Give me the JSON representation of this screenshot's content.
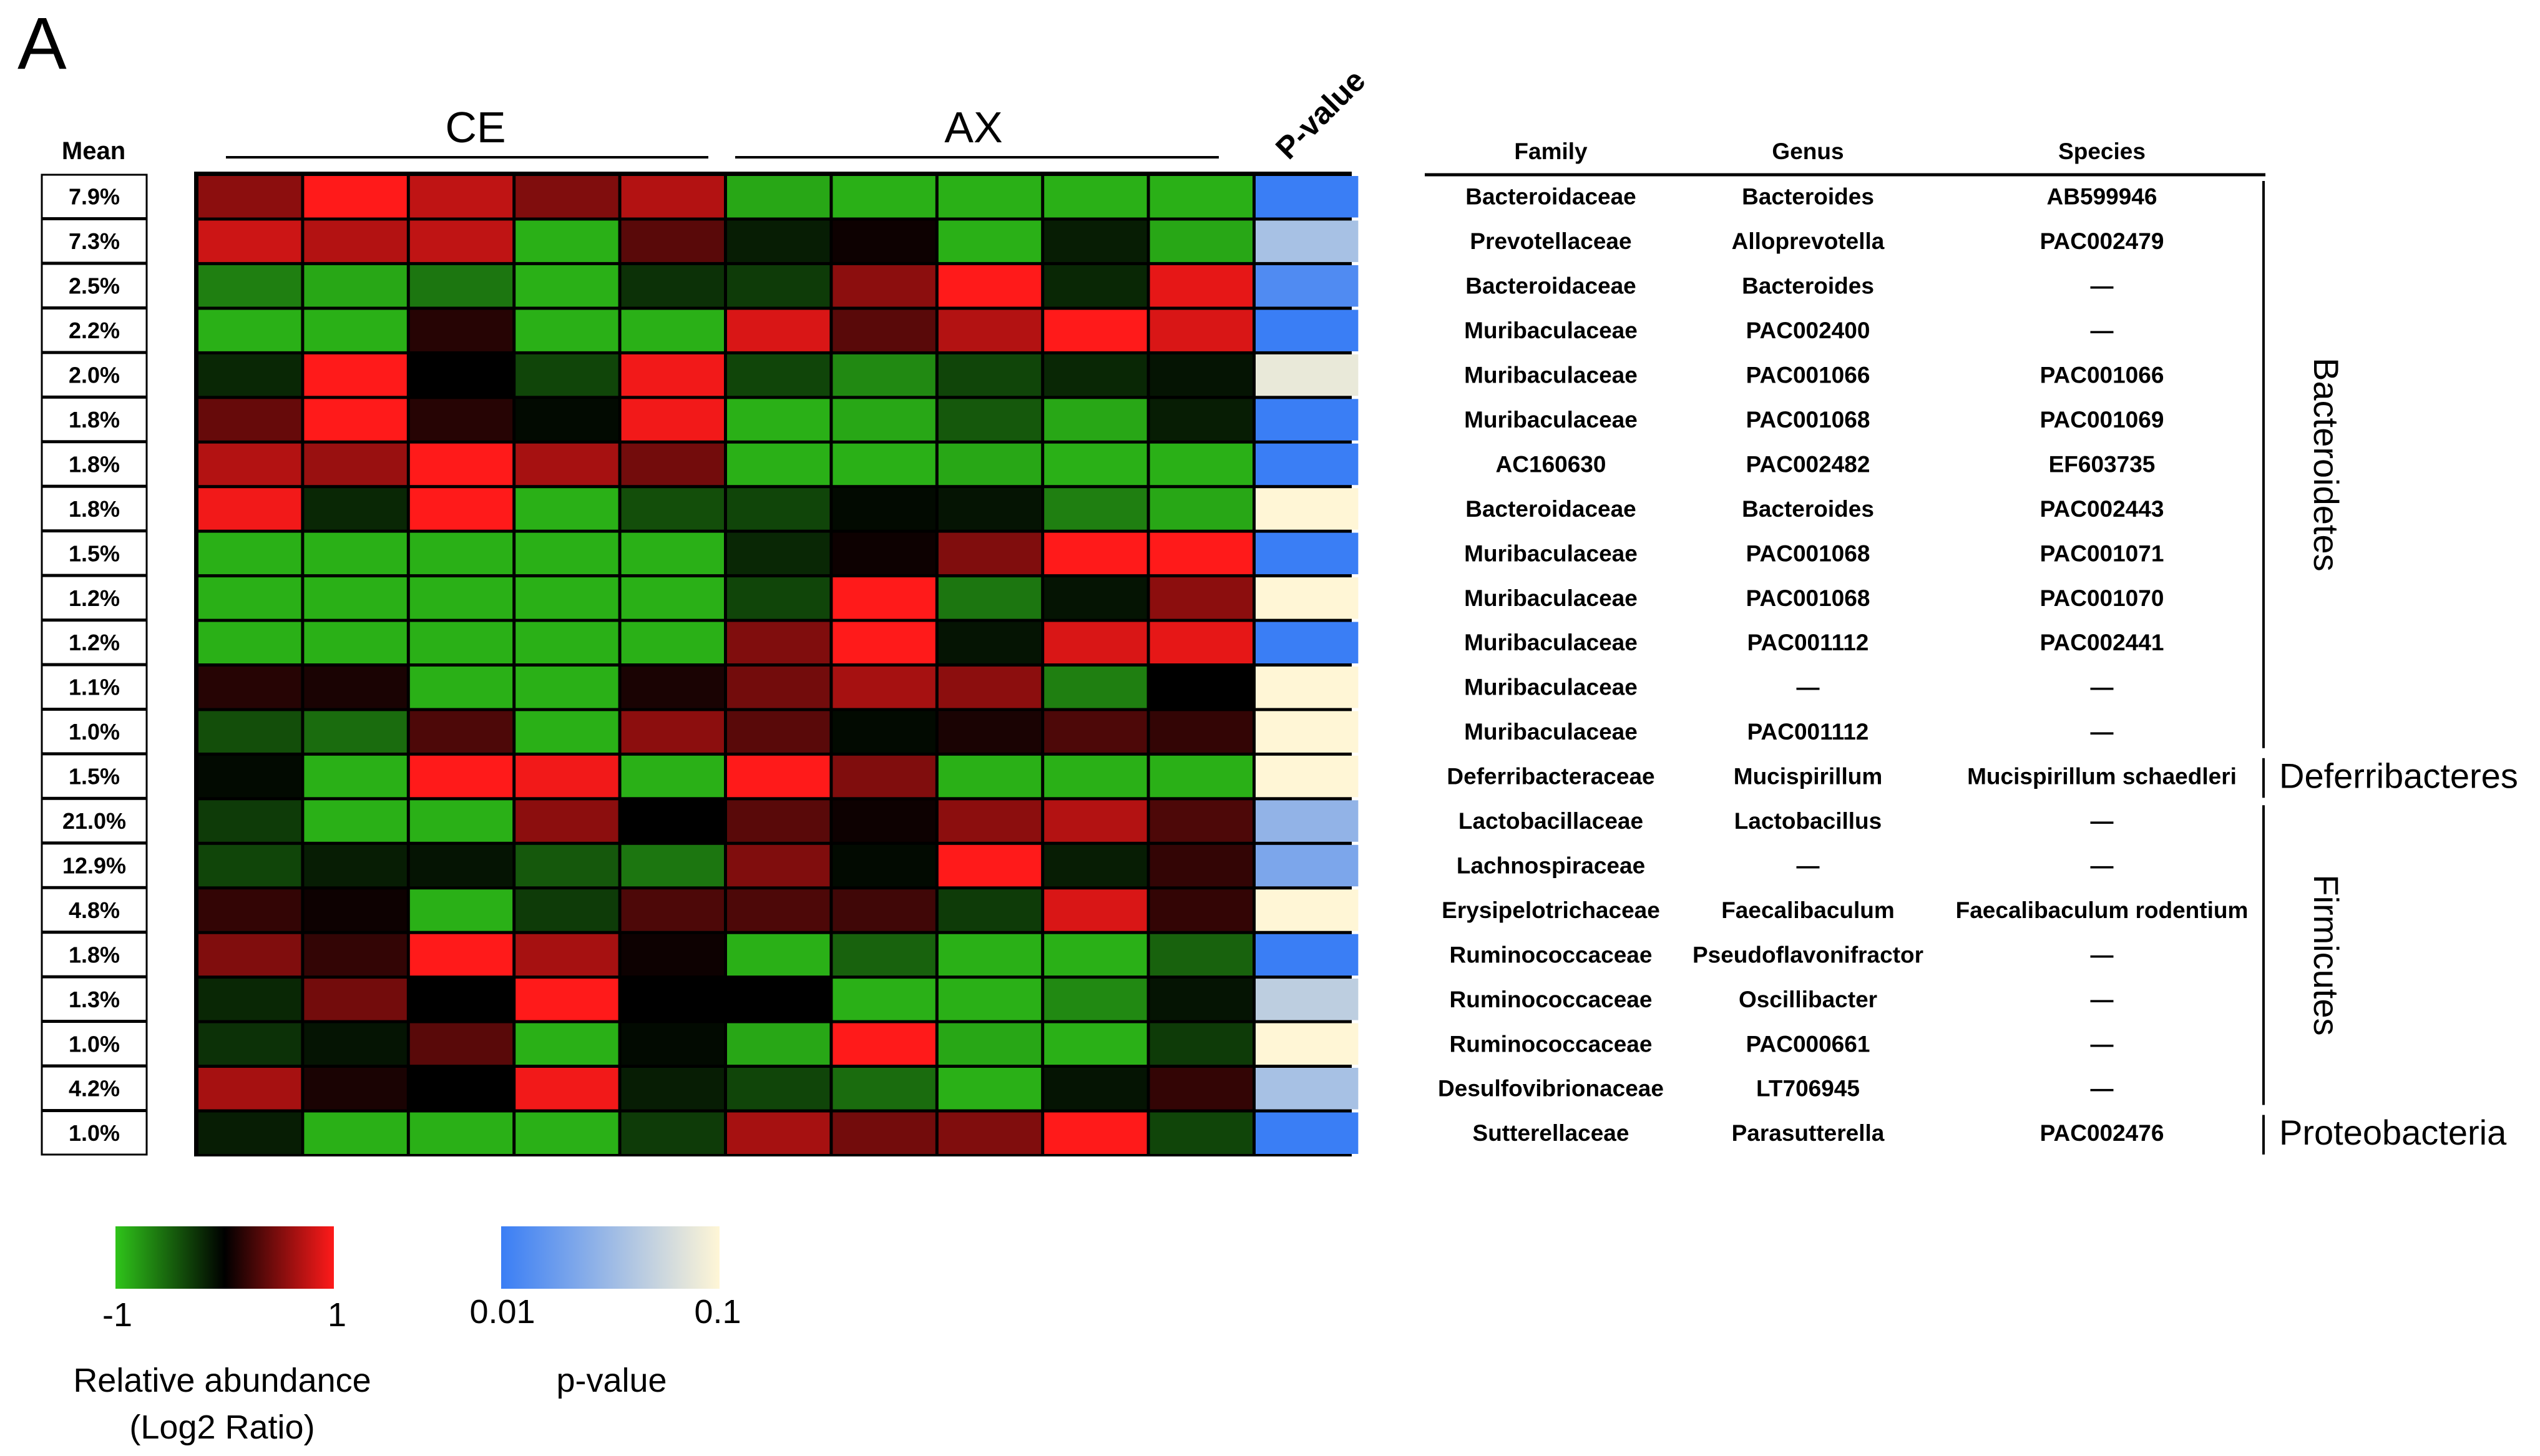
{
  "panel_label": "A",
  "colors": {
    "abundance_low": "#2fc41a",
    "abundance_mid": "#000000",
    "abundance_high": "#ff1a1a",
    "pvalue_low": "#3a7ef5",
    "pvalue_high": "#fff6d6"
  },
  "chart_data": {
    "type": "heatmap",
    "groups": [
      {
        "label": "CE",
        "columns": 5
      },
      {
        "label": "AX",
        "columns": 5
      }
    ],
    "pvalue_header": "P-value",
    "mean_header": "Mean",
    "value_range": [
      -1,
      1
    ],
    "rows": [
      {
        "mean": "7.9%",
        "values": [
          0.55,
          1.0,
          0.75,
          0.5,
          0.7,
          -0.85,
          -0.9,
          -0.9,
          -0.9,
          -0.9
        ],
        "p": 0.01
      },
      {
        "mean": "7.3%",
        "values": [
          0.8,
          0.7,
          0.75,
          -0.9,
          0.35,
          -0.15,
          0.05,
          -0.9,
          -0.15,
          -0.85
        ],
        "p": 0.06
      },
      {
        "mean": "2.5%",
        "values": [
          -0.65,
          -0.85,
          -0.6,
          -0.9,
          -0.25,
          -0.3,
          0.55,
          1.0,
          -0.2,
          0.9
        ],
        "p": 0.02
      },
      {
        "mean": "2.2%",
        "values": [
          -0.9,
          -0.9,
          0.15,
          -0.9,
          -0.9,
          0.85,
          0.35,
          0.7,
          1.0,
          0.85
        ],
        "p": 0.01
      },
      {
        "mean": "2.0%",
        "values": [
          -0.2,
          1.0,
          0.0,
          -0.35,
          0.95,
          -0.35,
          -0.7,
          -0.35,
          -0.2,
          -0.1
        ],
        "p": 0.09
      },
      {
        "mean": "1.8%",
        "values": [
          0.4,
          1.0,
          0.15,
          -0.05,
          0.95,
          -0.9,
          -0.85,
          -0.45,
          -0.85,
          -0.15
        ],
        "p": 0.01
      },
      {
        "mean": "1.8%",
        "values": [
          0.7,
          0.6,
          1.0,
          0.65,
          0.45,
          -0.9,
          -0.9,
          -0.85,
          -0.9,
          -0.9
        ],
        "p": 0.01
      },
      {
        "mean": "1.8%",
        "values": [
          0.95,
          -0.2,
          1.0,
          -0.9,
          -0.4,
          -0.35,
          -0.05,
          -0.1,
          -0.65,
          -0.85
        ],
        "p": 0.1
      },
      {
        "mean": "1.5%",
        "values": [
          -0.9,
          -0.9,
          -0.9,
          -0.9,
          -0.9,
          -0.2,
          0.05,
          0.5,
          1.0,
          1.0
        ],
        "p": 0.01
      },
      {
        "mean": "1.2%",
        "values": [
          -0.9,
          -0.9,
          -0.9,
          -0.9,
          -0.9,
          -0.35,
          1.0,
          -0.6,
          -0.1,
          0.55
        ],
        "p": 0.1
      },
      {
        "mean": "1.2%",
        "values": [
          -0.9,
          -0.9,
          -0.9,
          -0.9,
          -0.9,
          0.5,
          1.0,
          -0.1,
          0.85,
          0.9
        ],
        "p": 0.01
      },
      {
        "mean": "1.1%",
        "values": [
          0.15,
          0.1,
          -0.9,
          -0.9,
          0.1,
          0.45,
          0.65,
          0.55,
          -0.65,
          0.0
        ],
        "p": 0.1
      },
      {
        "mean": "1.0%",
        "values": [
          -0.4,
          -0.55,
          0.3,
          -0.9,
          0.55,
          0.35,
          -0.05,
          0.1,
          0.3,
          0.2
        ],
        "p": 0.1
      },
      {
        "mean": "1.5%",
        "values": [
          -0.05,
          -0.9,
          1.0,
          0.95,
          -0.9,
          1.0,
          0.5,
          -0.9,
          -0.9,
          -0.9
        ],
        "p": 0.1
      },
      {
        "mean": "21.0%",
        "values": [
          -0.3,
          -0.9,
          -0.9,
          0.55,
          0.0,
          0.35,
          0.05,
          0.55,
          0.7,
          0.3
        ],
        "p": 0.05
      },
      {
        "mean": "12.9%",
        "values": [
          -0.35,
          -0.15,
          -0.1,
          -0.45,
          -0.6,
          0.5,
          -0.05,
          1.0,
          -0.15,
          0.2
        ],
        "p": 0.04
      },
      {
        "mean": "4.8%",
        "values": [
          0.2,
          0.05,
          -0.9,
          -0.3,
          0.3,
          0.3,
          0.25,
          -0.3,
          0.85,
          0.2
        ],
        "p": 0.1
      },
      {
        "mean": "1.8%",
        "values": [
          0.5,
          0.2,
          1.0,
          0.65,
          0.05,
          -0.9,
          -0.5,
          -0.9,
          -0.9,
          -0.5
        ],
        "p": 0.01
      },
      {
        "mean": "1.3%",
        "values": [
          -0.2,
          0.45,
          0.0,
          1.0,
          0.0,
          0.0,
          -0.9,
          -0.9,
          -0.7,
          -0.1
        ],
        "p": 0.07
      },
      {
        "mean": "1.0%",
        "values": [
          -0.25,
          -0.1,
          0.35,
          -0.9,
          -0.05,
          -0.85,
          1.0,
          -0.85,
          -0.9,
          -0.3
        ],
        "p": 0.1
      },
      {
        "mean": "4.2%",
        "values": [
          0.65,
          0.1,
          0.0,
          0.95,
          -0.15,
          -0.35,
          -0.55,
          -0.9,
          -0.1,
          0.2
        ],
        "p": 0.06
      },
      {
        "mean": "1.0%",
        "values": [
          -0.15,
          -0.9,
          -0.9,
          -0.9,
          -0.3,
          0.65,
          0.45,
          0.5,
          1.0,
          -0.35
        ],
        "p": 0.01
      }
    ]
  },
  "taxonomy": {
    "headers": [
      "Family",
      "Genus",
      "Species"
    ],
    "rows": [
      [
        "Bacteroidaceae",
        "Bacteroides",
        "AB599946"
      ],
      [
        "Prevotellaceae",
        "Alloprevotella",
        "PAC002479"
      ],
      [
        "Bacteroidaceae",
        "Bacteroides",
        "—"
      ],
      [
        "Muribaculaceae",
        "PAC002400",
        "—"
      ],
      [
        "Muribaculaceae",
        "PAC001066",
        "PAC001066"
      ],
      [
        "Muribaculaceae",
        "PAC001068",
        "PAC001069"
      ],
      [
        "AC160630",
        "PAC002482",
        "EF603735"
      ],
      [
        "Bacteroidaceae",
        "Bacteroides",
        "PAC002443"
      ],
      [
        "Muribaculaceae",
        "PAC001068",
        "PAC001071"
      ],
      [
        "Muribaculaceae",
        "PAC001068",
        "PAC001070"
      ],
      [
        "Muribaculaceae",
        "PAC001112",
        "PAC002441"
      ],
      [
        "Muribaculaceae",
        "—",
        "—"
      ],
      [
        "Muribaculaceae",
        "PAC001112",
        "—"
      ],
      [
        "Deferribacteraceae",
        "Mucispirillum",
        "Mucispirillum schaedleri"
      ],
      [
        "Lactobacillaceae",
        "Lactobacillus",
        "—"
      ],
      [
        "Lachnospiraceae",
        "—",
        "—"
      ],
      [
        "Erysipelotrichaceae",
        "Faecalibaculum",
        "Faecalibaculum rodentium"
      ],
      [
        "Ruminococcaceae",
        "Pseudoflavonifractor",
        "—"
      ],
      [
        "Ruminococcaceae",
        "Oscillibacter",
        "—"
      ],
      [
        "Ruminococcaceae",
        "PAC000661",
        "—"
      ],
      [
        "Desulfovibrionaceae",
        "LT706945",
        "—"
      ],
      [
        "Sutterellaceae",
        "Parasutterella",
        "PAC002476"
      ]
    ],
    "phyla": [
      {
        "name": "Bacteroidetes",
        "from": 0,
        "to": 12,
        "orientation": "vertical"
      },
      {
        "name": "Deferribacteres",
        "from": 13,
        "to": 13,
        "orientation": "horizontal"
      },
      {
        "name": "Firmicutes",
        "from": 14,
        "to": 20,
        "orientation": "vertical"
      },
      {
        "name": "Proteobacteria",
        "from": 21,
        "to": 21,
        "orientation": "horizontal"
      }
    ]
  },
  "legends": {
    "abundance": {
      "min": "-1",
      "max": "1",
      "title_line1": "Relative abundance",
      "title_line2": "(Log2 Ratio)"
    },
    "pvalue": {
      "min": "0.01",
      "max": "0.1",
      "title": "p-value"
    }
  }
}
